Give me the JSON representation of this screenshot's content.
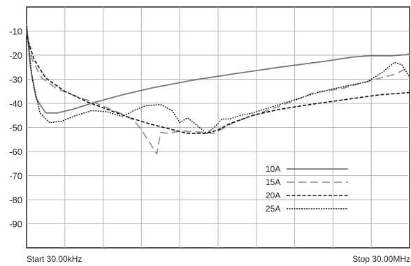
{
  "chart_data": {
    "type": "line",
    "start_label": "Start 30.00kHz",
    "stop_label": "Stop 30.00MHz",
    "x_domain": [
      0,
      10
    ],
    "ylim": [
      -100,
      0
    ],
    "y_ticks": [
      "-10",
      "-20",
      "-30",
      "-40",
      "-50",
      "-60",
      "-70",
      "-80",
      "-90"
    ],
    "y_tick_values": [
      -10,
      -20,
      -30,
      -40,
      -50,
      -60,
      -70,
      -80,
      -90
    ],
    "grid": true,
    "legend_position": "bottom-right",
    "series": [
      {
        "name": "10A",
        "color": "#777777",
        "dash": "solid",
        "x": [
          0,
          0.1,
          0.25,
          0.5,
          0.8,
          1.2,
          1.8,
          2.5,
          3.3,
          4.3,
          5.4,
          6.6,
          7.8,
          8.5,
          9.0,
          9.5,
          9.9,
          10
        ],
        "y": [
          -7,
          -25,
          -38,
          -44,
          -44,
          -42.5,
          -39.5,
          -36.5,
          -33.5,
          -30.5,
          -27.8,
          -25,
          -22.5,
          -20.8,
          -20.2,
          -20.3,
          -19.8,
          -19.5
        ]
      },
      {
        "name": "15A",
        "color": "#888888",
        "dash": "long-dash",
        "x": [
          0,
          0.15,
          0.4,
          0.8,
          1.3,
          1.9,
          2.5,
          2.8,
          3.0,
          3.2,
          3.4,
          3.5,
          3.7,
          4.0,
          4.6,
          4.9,
          5.4,
          6.1,
          6.9,
          7.5,
          8.2,
          9.0,
          9.6,
          10
        ],
        "y": [
          -10,
          -22,
          -29.5,
          -34,
          -37,
          -40.5,
          -44.5,
          -47,
          -51,
          -56,
          -61,
          -52,
          -52.5,
          -51.5,
          -52,
          -52.5,
          -48,
          -44,
          -39.5,
          -35.5,
          -34,
          -30.5,
          -28,
          -25
        ]
      },
      {
        "name": "20A",
        "color": "#111111",
        "dash": "dashed",
        "x": [
          0,
          0.2,
          0.5,
          1.0,
          1.6,
          2.2,
          2.7,
          3.2,
          3.7,
          4.2,
          4.7,
          5.0,
          5.3,
          5.9,
          6.6,
          7.4,
          8.3,
          9.2,
          10
        ],
        "y": [
          -12,
          -22,
          -29.5,
          -35,
          -39.5,
          -43,
          -46,
          -48.5,
          -50.5,
          -52.5,
          -52.5,
          -51,
          -48.5,
          -45,
          -42.5,
          -40.5,
          -38.5,
          -36.5,
          -35.5
        ]
      },
      {
        "name": "25A",
        "color": "#111111",
        "dash": "dotted",
        "x": [
          0,
          0.15,
          0.35,
          0.6,
          0.9,
          1.3,
          1.7,
          2.1,
          2.5,
          2.8,
          3.1,
          3.5,
          3.8,
          4.0,
          4.2,
          4.4,
          4.7,
          4.9,
          5.1,
          5.3,
          5.6,
          5.9,
          6.4,
          7.0,
          7.6,
          8.3,
          8.9,
          9.3,
          9.6,
          9.8,
          10
        ],
        "y": [
          -8,
          -30,
          -44,
          -48,
          -47.5,
          -45,
          -43,
          -43.5,
          -45.5,
          -43,
          -41,
          -40.5,
          -43,
          -48,
          -46,
          -48.5,
          -52.5,
          -50,
          -46.5,
          -46.5,
          -45,
          -44,
          -41.5,
          -38.5,
          -35.5,
          -33,
          -31,
          -27,
          -23,
          -24,
          -29
        ]
      }
    ]
  }
}
